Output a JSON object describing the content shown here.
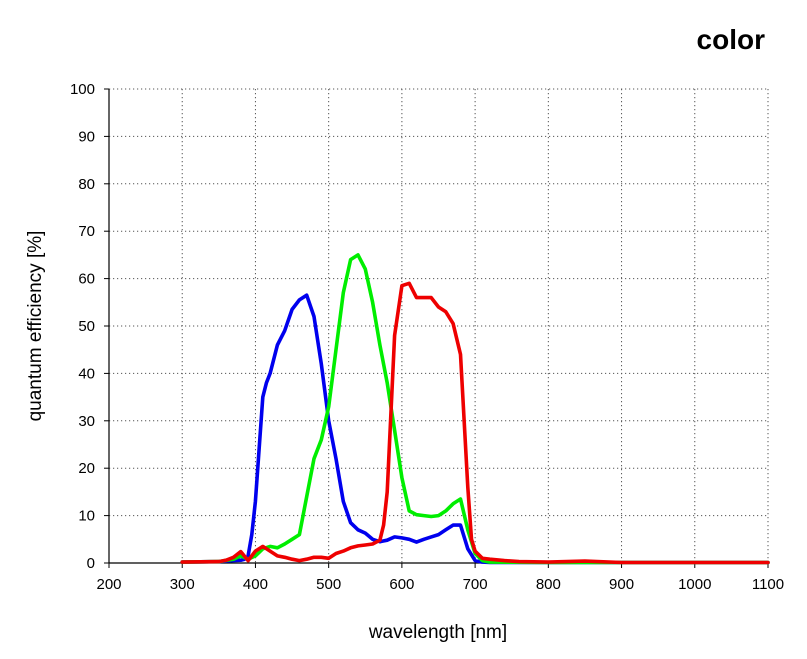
{
  "chart_data": {
    "type": "line",
    "title": "color",
    "xlabel": "wavelength [nm]",
    "ylabel": "quantum efficiency [%]",
    "xlim": [
      200,
      1100
    ],
    "ylim": [
      0,
      100
    ],
    "xticks": [
      200,
      300,
      400,
      500,
      600,
      700,
      800,
      900,
      1000,
      1100
    ],
    "yticks": [
      0,
      10,
      20,
      30,
      40,
      50,
      60,
      70,
      80,
      90,
      100
    ],
    "grid": true,
    "series": [
      {
        "color": "#0000ee",
        "x": [
          300,
          350,
          370,
          380,
          385,
          390,
          395,
          400,
          405,
          410,
          415,
          420,
          430,
          440,
          450,
          460,
          470,
          480,
          490,
          500,
          510,
          520,
          530,
          540,
          550,
          560,
          570,
          580,
          590,
          600,
          610,
          620,
          630,
          640,
          650,
          660,
          670,
          680,
          690,
          700,
          710,
          720,
          800,
          900,
          1000,
          1100
        ],
        "y": [
          0.2,
          0.3,
          0.5,
          0.6,
          0.8,
          1.5,
          6,
          13,
          24,
          35,
          38,
          40,
          46,
          49,
          53.5,
          55.5,
          56.5,
          52,
          42,
          30,
          22,
          13,
          8.5,
          7,
          6.3,
          5,
          4.5,
          4.8,
          5.5,
          5.3,
          5,
          4.4,
          5,
          5.5,
          6,
          7,
          8,
          8,
          3,
          0.5,
          0.2,
          0.1,
          0.1,
          0.1,
          0.1,
          0.1
        ]
      },
      {
        "color": "#00ee00",
        "x": [
          300,
          350,
          370,
          380,
          390,
          400,
          410,
          420,
          430,
          440,
          450,
          460,
          470,
          480,
          490,
          500,
          510,
          520,
          530,
          540,
          550,
          560,
          570,
          580,
          590,
          600,
          610,
          620,
          630,
          640,
          650,
          660,
          670,
          680,
          690,
          700,
          710,
          720,
          800,
          900,
          1000,
          1100
        ],
        "y": [
          0.2,
          0.3,
          0.8,
          1.5,
          0.8,
          1.5,
          3,
          3.5,
          3.2,
          4,
          5,
          6,
          14,
          22,
          26,
          33,
          45,
          57,
          64,
          65,
          62,
          55,
          46,
          38,
          28,
          18,
          11,
          10.2,
          10,
          9.8,
          10,
          11,
          12.5,
          13.5,
          7,
          2,
          0.5,
          0.2,
          0.1,
          0.1,
          0.1,
          0.1
        ]
      },
      {
        "color": "#ee0000",
        "x": [
          300,
          350,
          360,
          370,
          380,
          390,
          400,
          410,
          420,
          430,
          440,
          450,
          460,
          470,
          480,
          490,
          500,
          510,
          520,
          530,
          540,
          550,
          560,
          570,
          575,
          580,
          590,
          600,
          610,
          620,
          630,
          640,
          650,
          660,
          670,
          680,
          690,
          695,
          700,
          710,
          720,
          740,
          760,
          800,
          850,
          900,
          1000,
          1100
        ],
        "y": [
          0.2,
          0.3,
          0.6,
          1.2,
          2.4,
          0.5,
          2.5,
          3.5,
          2.5,
          1.5,
          1.2,
          0.8,
          0.5,
          0.8,
          1.2,
          1.2,
          1,
          2,
          2.5,
          3.2,
          3.6,
          3.8,
          4,
          4.8,
          8,
          15,
          48,
          58.5,
          59,
          56,
          56,
          56,
          54,
          53,
          50.5,
          44,
          16,
          5,
          2.5,
          1,
          0.8,
          0.5,
          0.3,
          0.2,
          0.4,
          0.1,
          0.1,
          0.1
        ]
      }
    ]
  }
}
